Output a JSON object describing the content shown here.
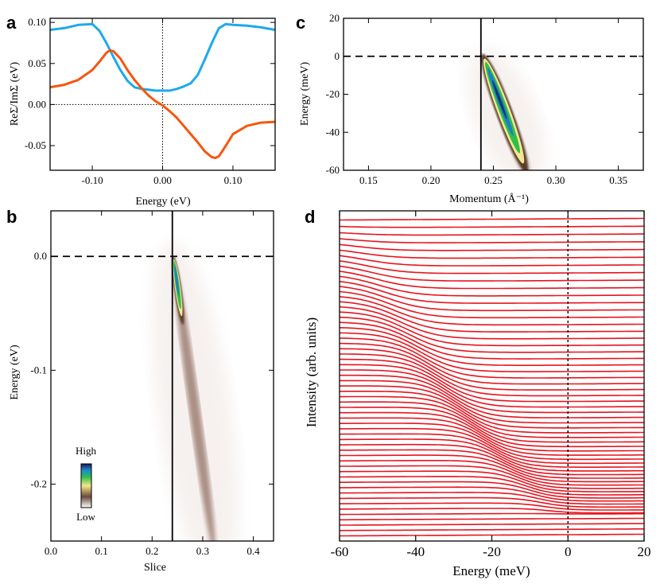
{
  "chart_data": [
    {
      "panel": "a",
      "type": "line",
      "xlabel": "Energy (eV)",
      "ylabel": "ReΣ/ImΣ (eV)",
      "xlim": [
        -0.16,
        0.16
      ],
      "ylim": [
        -0.08,
        0.105
      ],
      "xticks": [
        "-0.10",
        "0.00",
        "0.10"
      ],
      "xtick_values": [
        -0.1,
        0.0,
        0.1
      ],
      "yticks": [
        "0.10",
        "0.05",
        "0.00",
        "-0.05"
      ],
      "ytick_values": [
        0.1,
        0.05,
        0.0,
        -0.05
      ],
      "reference_lines": [
        {
          "orientation": "vertical",
          "x": 0.0,
          "style": "dotted"
        },
        {
          "orientation": "horizontal",
          "y": 0.0,
          "style": "dotted"
        }
      ],
      "series": [
        {
          "name": "ImΣ",
          "color": "#1ea9ec",
          "x": [
            -0.16,
            -0.14,
            -0.12,
            -0.1,
            -0.09,
            -0.08,
            -0.07,
            -0.06,
            -0.05,
            -0.04,
            -0.03,
            -0.02,
            -0.01,
            0.0,
            0.01,
            0.02,
            0.03,
            0.04,
            0.05,
            0.06,
            0.07,
            0.08,
            0.09,
            0.1,
            0.12,
            0.14,
            0.16
          ],
          "y": [
            0.091,
            0.093,
            0.097,
            0.098,
            0.09,
            0.075,
            0.058,
            0.042,
            0.029,
            0.021,
            0.019,
            0.018,
            0.017,
            0.017,
            0.017,
            0.019,
            0.022,
            0.026,
            0.036,
            0.055,
            0.075,
            0.093,
            0.098,
            0.097,
            0.096,
            0.094,
            0.091
          ]
        },
        {
          "name": "ReΣ",
          "color": "#f5560f",
          "x": [
            -0.16,
            -0.14,
            -0.12,
            -0.1,
            -0.09,
            -0.08,
            -0.075,
            -0.07,
            -0.06,
            -0.05,
            -0.04,
            -0.03,
            -0.02,
            -0.01,
            0.0,
            0.01,
            0.02,
            0.03,
            0.04,
            0.05,
            0.06,
            0.07,
            0.075,
            0.08,
            0.09,
            0.1,
            0.12,
            0.14,
            0.16
          ],
          "y": [
            0.021,
            0.024,
            0.03,
            0.042,
            0.052,
            0.063,
            0.066,
            0.065,
            0.056,
            0.042,
            0.03,
            0.02,
            0.011,
            0.004,
            -0.001,
            -0.008,
            -0.016,
            -0.026,
            -0.036,
            -0.046,
            -0.057,
            -0.064,
            -0.065,
            -0.063,
            -0.05,
            -0.036,
            -0.026,
            -0.022,
            -0.021
          ]
        }
      ]
    },
    {
      "panel": "c",
      "type": "heatmap",
      "xlabel": "Momentum (Å⁻¹)",
      "ylabel": "Energy (meV)",
      "xlim": [
        0.13,
        0.37
      ],
      "ylim": [
        -60,
        20
      ],
      "xticks": [
        "0.15",
        "0.20",
        "0.25",
        "0.30",
        "0.35"
      ],
      "xtick_values": [
        0.15,
        0.2,
        0.25,
        0.3,
        0.35
      ],
      "yticks": [
        "20",
        "0",
        "-20",
        "-40",
        "-60"
      ],
      "ytick_values": [
        20,
        0,
        -20,
        -40,
        -60
      ],
      "reference_lines": [
        {
          "orientation": "vertical",
          "x": 0.24,
          "style": "solid"
        },
        {
          "orientation": "horizontal",
          "y": 0,
          "style": "dashed"
        }
      ],
      "band": {
        "k_at_top": 0.242,
        "e_top": 0,
        "k_at_bottom": 0.276,
        "e_bottom": -60
      }
    },
    {
      "panel": "b",
      "type": "heatmap",
      "xlabel": "Slice",
      "ylabel": "Energy (eV)",
      "xlim": [
        0.0,
        0.44
      ],
      "ylim": [
        -0.25,
        0.04
      ],
      "xticks": [
        "0.0",
        "0.1",
        "0.2",
        "0.3",
        "0.4"
      ],
      "xtick_values": [
        0.0,
        0.1,
        0.2,
        0.3,
        0.4
      ],
      "yticks": [
        "0.0",
        "-0.1",
        "-0.2"
      ],
      "ytick_values": [
        0.0,
        -0.1,
        -0.2
      ],
      "reference_lines": [
        {
          "orientation": "vertical",
          "x": 0.24,
          "style": "solid"
        },
        {
          "orientation": "horizontal",
          "y": 0.0,
          "style": "dashed"
        }
      ],
      "colorbar": {
        "high_label": "High",
        "low_label": "Low"
      },
      "band": {
        "k_at_top": 0.242,
        "e_top": 0.0,
        "k_at_bottom": 0.32,
        "e_bottom": -0.25
      }
    },
    {
      "panel": "d",
      "type": "line",
      "xlabel": "Energy (meV)",
      "ylabel": "Intensity (arb. units)",
      "xlim": [
        -60,
        20
      ],
      "xticks": [
        "-60",
        "-40",
        "-20",
        "0",
        "20"
      ],
      "xtick_values": [
        -60,
        -40,
        -20,
        0,
        20
      ],
      "reference_lines": [
        {
          "orientation": "vertical",
          "x": 0,
          "style": "dotted"
        }
      ],
      "series_color": "#e8141e",
      "curve_count": 60,
      "description": "stacked energy distribution curves with step edge shifting from -60 meV to 0 meV"
    }
  ]
}
